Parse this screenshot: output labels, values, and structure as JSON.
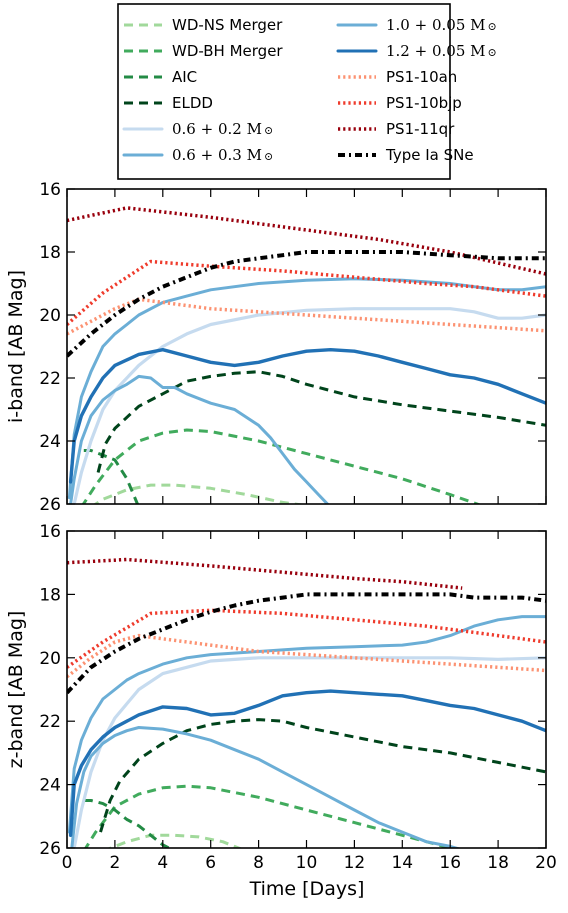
{
  "chart_data": [
    {
      "type": "line",
      "panel": "top",
      "xlabel": "",
      "ylabel": "i-band [AB Mag]",
      "xlim": [
        0,
        20
      ],
      "ylim": [
        26,
        16
      ],
      "y_inverted": true,
      "xticks": [
        "0",
        "2",
        "4",
        "6",
        "8",
        "10",
        "12",
        "14",
        "16",
        "18",
        "20"
      ],
      "yticks": [
        "16",
        "18",
        "20",
        "22",
        "24",
        "26"
      ],
      "grid": false,
      "series": [
        {
          "key": "wdns",
          "x": [
            1.0,
            1.5,
            2.5,
            3.5,
            4.5,
            6,
            7.5,
            9,
            10.5
          ],
          "y": [
            26.1,
            25.85,
            25.55,
            25.4,
            25.4,
            25.5,
            25.7,
            25.95,
            26.1
          ]
        },
        {
          "key": "wdbh",
          "x": [
            0.6,
            1.2,
            2,
            3,
            4,
            5,
            6,
            8,
            10,
            12,
            14,
            16,
            17.5
          ],
          "y": [
            26.1,
            25.4,
            24.6,
            24.0,
            23.75,
            23.65,
            23.7,
            24.0,
            24.4,
            24.8,
            25.2,
            25.7,
            26.1
          ]
        },
        {
          "key": "aic",
          "x": [
            0.7,
            1,
            1.5,
            2,
            2.5,
            3
          ],
          "y": [
            24.3,
            24.3,
            24.45,
            24.6,
            25.2,
            26.1
          ]
        },
        {
          "key": "eldd",
          "x": [
            1.3,
            1.6,
            2,
            3,
            4,
            5,
            6,
            7,
            8,
            9,
            10,
            12,
            14,
            16,
            18,
            20
          ],
          "y": [
            25.0,
            24.1,
            23.6,
            22.9,
            22.5,
            22.1,
            21.95,
            21.85,
            21.8,
            21.95,
            22.2,
            22.6,
            22.85,
            23.05,
            23.25,
            23.5
          ]
        },
        {
          "key": "m06_02",
          "x": [
            0.3,
            0.6,
            1,
            1.5,
            2,
            3,
            4,
            5,
            6,
            8,
            10,
            12,
            14,
            16,
            17,
            18,
            19,
            20
          ],
          "y": [
            26.0,
            25.0,
            24.0,
            23.0,
            22.4,
            21.6,
            21.0,
            20.6,
            20.3,
            20.0,
            19.85,
            19.8,
            19.8,
            19.8,
            19.9,
            20.1,
            20.1,
            20.0
          ]
        },
        {
          "key": "m06_03",
          "x": [
            0.15,
            0.3,
            0.6,
            1,
            1.5,
            2,
            2.5,
            3,
            3.5,
            4,
            4.5,
            5,
            6,
            7,
            8,
            8.5,
            9,
            9.5,
            10,
            10.5,
            11
          ],
          "y": [
            26.0,
            25.2,
            24.0,
            23.2,
            22.7,
            22.4,
            22.2,
            21.95,
            22.0,
            22.3,
            22.3,
            22.5,
            22.8,
            23.0,
            23.5,
            23.9,
            24.4,
            24.9,
            25.3,
            25.7,
            26.1
          ]
        },
        {
          "key": "m10_005",
          "x": [
            0.1,
            0.3,
            0.6,
            1,
            1.5,
            2,
            2.5,
            3,
            4,
            5,
            6,
            8,
            10,
            12,
            14,
            16,
            17,
            18,
            19,
            20
          ],
          "y": [
            25.8,
            23.8,
            22.6,
            21.8,
            21.0,
            20.6,
            20.3,
            20.0,
            19.6,
            19.4,
            19.2,
            19.0,
            18.9,
            18.85,
            18.9,
            19.0,
            19.1,
            19.2,
            19.2,
            19.1
          ]
        },
        {
          "key": "m12_005",
          "x": [
            0.15,
            0.3,
            0.6,
            1,
            1.5,
            2,
            3,
            4,
            5,
            6,
            7,
            8,
            9,
            10,
            11,
            12,
            13,
            14,
            15,
            16,
            17,
            18,
            19,
            20
          ],
          "y": [
            25.3,
            24.0,
            23.2,
            22.6,
            22.0,
            21.6,
            21.25,
            21.1,
            21.3,
            21.5,
            21.6,
            21.5,
            21.3,
            21.15,
            21.1,
            21.15,
            21.3,
            21.5,
            21.7,
            21.9,
            22.0,
            22.2,
            22.5,
            22.8
          ]
        },
        {
          "key": "ps1_10ah",
          "x": [
            0,
            1,
            2,
            3,
            4,
            6,
            8,
            10,
            12,
            14,
            16,
            18,
            20
          ],
          "y": [
            20.6,
            20.2,
            19.8,
            19.5,
            19.6,
            19.8,
            19.9,
            20.0,
            20.1,
            20.2,
            20.3,
            20.4,
            20.5
          ]
        },
        {
          "key": "ps1_10bjp",
          "x": [
            0,
            1.5,
            3.5,
            6,
            9,
            12,
            15,
            17,
            20
          ],
          "y": [
            20.3,
            19.3,
            18.3,
            18.45,
            18.6,
            18.8,
            19.0,
            19.1,
            19.4
          ]
        },
        {
          "key": "ps1_11qr",
          "x": [
            0,
            2.5,
            6,
            10,
            13,
            16,
            20
          ],
          "y": [
            17.0,
            16.6,
            16.9,
            17.3,
            17.6,
            18.0,
            18.7
          ]
        },
        {
          "key": "type_ia",
          "x": [
            0,
            1,
            2,
            3,
            4,
            5,
            6,
            7,
            8,
            9,
            10,
            11,
            12,
            13,
            14,
            15,
            16,
            17,
            18,
            19,
            20
          ],
          "y": [
            21.3,
            20.6,
            20.0,
            19.5,
            19.1,
            18.8,
            18.5,
            18.3,
            18.2,
            18.1,
            18.0,
            18.0,
            18.0,
            18.0,
            18.0,
            18.05,
            18.1,
            18.15,
            18.2,
            18.2,
            18.2
          ]
        }
      ]
    },
    {
      "type": "line",
      "panel": "bottom",
      "xlabel": "Time [Days]",
      "ylabel": "z-band [AB Mag]",
      "xlim": [
        0,
        20
      ],
      "ylim": [
        26,
        16
      ],
      "y_inverted": true,
      "xticks": [
        "0",
        "2",
        "4",
        "6",
        "8",
        "10",
        "12",
        "14",
        "16",
        "18",
        "20"
      ],
      "yticks": [
        "16",
        "18",
        "20",
        "22",
        "24",
        "26"
      ],
      "grid": false,
      "series": [
        {
          "key": "wdns",
          "x": [
            1.5,
            2.5,
            3.5,
            4.5,
            5.5,
            6.5,
            7.5
          ],
          "y": [
            26.1,
            25.8,
            25.6,
            25.6,
            25.65,
            25.8,
            26.1
          ]
        },
        {
          "key": "wdbh",
          "x": [
            0.7,
            1.2,
            2,
            3,
            4,
            5,
            6,
            8,
            10,
            12,
            14,
            16,
            17
          ],
          "y": [
            26.1,
            25.5,
            24.7,
            24.3,
            24.1,
            24.05,
            24.1,
            24.4,
            24.8,
            25.2,
            25.6,
            26.0,
            26.2
          ]
        },
        {
          "key": "aic",
          "x": [
            0.7,
            1,
            1.5,
            2,
            2.5,
            3,
            3.5,
            4,
            4.5
          ],
          "y": [
            24.5,
            24.5,
            24.6,
            24.8,
            25.1,
            25.3,
            25.6,
            25.9,
            26.1
          ]
        },
        {
          "key": "eldd",
          "x": [
            1.4,
            1.8,
            2.2,
            3,
            4,
            5,
            6,
            7,
            8,
            9,
            10,
            12,
            14,
            16,
            18,
            20
          ],
          "y": [
            25.5,
            24.5,
            23.9,
            23.2,
            22.7,
            22.3,
            22.1,
            22.0,
            21.95,
            22.0,
            22.2,
            22.5,
            22.8,
            23.0,
            23.3,
            23.6
          ]
        },
        {
          "key": "m06_02",
          "x": [
            0.3,
            0.6,
            1,
            1.5,
            2,
            3,
            4,
            5,
            6,
            8,
            10,
            12,
            14,
            16,
            18,
            20
          ],
          "y": [
            26.0,
            24.8,
            23.6,
            22.6,
            21.9,
            21.0,
            20.5,
            20.3,
            20.1,
            20.0,
            20.0,
            20.0,
            20.0,
            20.0,
            20.05,
            20.0
          ]
        },
        {
          "key": "m06_03",
          "x": [
            0.2,
            0.4,
            0.7,
            1,
            1.5,
            2,
            2.5,
            3,
            4,
            5,
            6,
            7,
            8,
            9,
            10,
            11,
            12,
            13,
            14,
            15,
            16,
            16.7
          ],
          "y": [
            26.0,
            24.6,
            23.6,
            23.1,
            22.7,
            22.45,
            22.3,
            22.2,
            22.25,
            22.4,
            22.6,
            22.9,
            23.2,
            23.6,
            24.0,
            24.4,
            24.8,
            25.2,
            25.5,
            25.8,
            25.95,
            26.1
          ]
        },
        {
          "key": "m10_005",
          "x": [
            0.1,
            0.3,
            0.6,
            1,
            1.5,
            2,
            2.5,
            3,
            4,
            5,
            6,
            8,
            10,
            12,
            14,
            15,
            16,
            17,
            18,
            19,
            20
          ],
          "y": [
            25.5,
            23.5,
            22.6,
            21.9,
            21.3,
            21.0,
            20.7,
            20.5,
            20.2,
            20.0,
            19.9,
            19.8,
            19.7,
            19.65,
            19.6,
            19.5,
            19.3,
            19.0,
            18.8,
            18.7,
            18.7
          ]
        },
        {
          "key": "m12_005",
          "x": [
            0.15,
            0.3,
            0.6,
            1,
            1.5,
            2,
            3,
            4,
            5,
            6,
            7,
            8,
            9,
            10,
            11,
            12,
            13,
            14,
            15,
            16,
            17,
            18,
            19,
            20
          ],
          "y": [
            25.6,
            24.0,
            23.4,
            22.9,
            22.5,
            22.2,
            21.8,
            21.55,
            21.6,
            21.8,
            21.75,
            21.5,
            21.2,
            21.1,
            21.05,
            21.1,
            21.15,
            21.2,
            21.35,
            21.5,
            21.6,
            21.8,
            22.0,
            22.3
          ]
        },
        {
          "key": "ps1_10ah",
          "x": [
            0,
            1,
            2,
            3,
            4,
            6,
            8,
            10,
            12,
            14,
            16,
            18,
            20
          ],
          "y": [
            20.6,
            20.0,
            19.5,
            19.3,
            19.4,
            19.6,
            19.8,
            19.9,
            20.0,
            20.1,
            20.2,
            20.3,
            20.4
          ]
        },
        {
          "key": "ps1_10bjp",
          "x": [
            0,
            1.5,
            3.5,
            6,
            9,
            12,
            15,
            17,
            20
          ],
          "y": [
            20.3,
            19.5,
            18.6,
            18.5,
            18.6,
            18.8,
            19.0,
            19.2,
            19.5
          ]
        },
        {
          "key": "ps1_11qr",
          "x": [
            0,
            2.5,
            6,
            9,
            12,
            14,
            16.5
          ],
          "y": [
            17.0,
            16.9,
            17.1,
            17.3,
            17.5,
            17.6,
            17.8
          ]
        },
        {
          "key": "type_ia",
          "x": [
            0,
            1,
            2,
            3,
            4,
            5,
            6,
            7,
            8,
            9,
            10,
            11,
            12,
            13,
            14,
            15,
            16,
            17,
            18,
            19,
            20
          ],
          "y": [
            21.1,
            20.3,
            19.8,
            19.4,
            19.1,
            18.8,
            18.55,
            18.35,
            18.2,
            18.1,
            18.0,
            18.0,
            18.0,
            18.0,
            18.0,
            18.0,
            18.0,
            18.1,
            18.1,
            18.1,
            18.2
          ]
        }
      ]
    }
  ],
  "legend": {
    "placement": "top",
    "entries": [
      {
        "key": "wdns",
        "label": "WD-NS Merger",
        "color": "#a1d99b",
        "style": "dashed",
        "math": false
      },
      {
        "key": "wdbh",
        "label": "WD-BH Merger",
        "color": "#41ab5d",
        "style": "dashed",
        "math": false
      },
      {
        "key": "aic",
        "label": "AIC",
        "color": "#238b45",
        "style": "dashed",
        "math": false
      },
      {
        "key": "eldd",
        "label": "ELDD",
        "color": "#00441b",
        "style": "dashed",
        "math": false
      },
      {
        "key": "m06_02",
        "label": "0.6 + 0.2 M",
        "color": "#c6dbef",
        "style": "solid",
        "math": true
      },
      {
        "key": "m06_03",
        "label": "0.6 + 0.3 M",
        "color": "#6baed6",
        "style": "solid",
        "math": true
      },
      {
        "key": "m10_005",
        "label": "1.0 + 0.05 M",
        "color": "#6baed6",
        "style": "solid",
        "math": true
      },
      {
        "key": "m12_005",
        "label": "1.2 + 0.05 M",
        "color": "#2171b5",
        "style": "solid",
        "math": true
      },
      {
        "key": "ps1_10ah",
        "label": "PS1-10ah",
        "color": "#fc9272",
        "style": "dotted",
        "math": false
      },
      {
        "key": "ps1_10bjp",
        "label": "PS1-10bjp",
        "color": "#ef3b2c",
        "style": "dotted",
        "math": false
      },
      {
        "key": "ps1_11qr",
        "label": "PS1-11qr",
        "color": "#99000d",
        "style": "dotted",
        "math": false
      },
      {
        "key": "type_ia",
        "label": "Type Ia SNe",
        "color": "#000000",
        "style": "dashdot",
        "math": false
      }
    ]
  }
}
